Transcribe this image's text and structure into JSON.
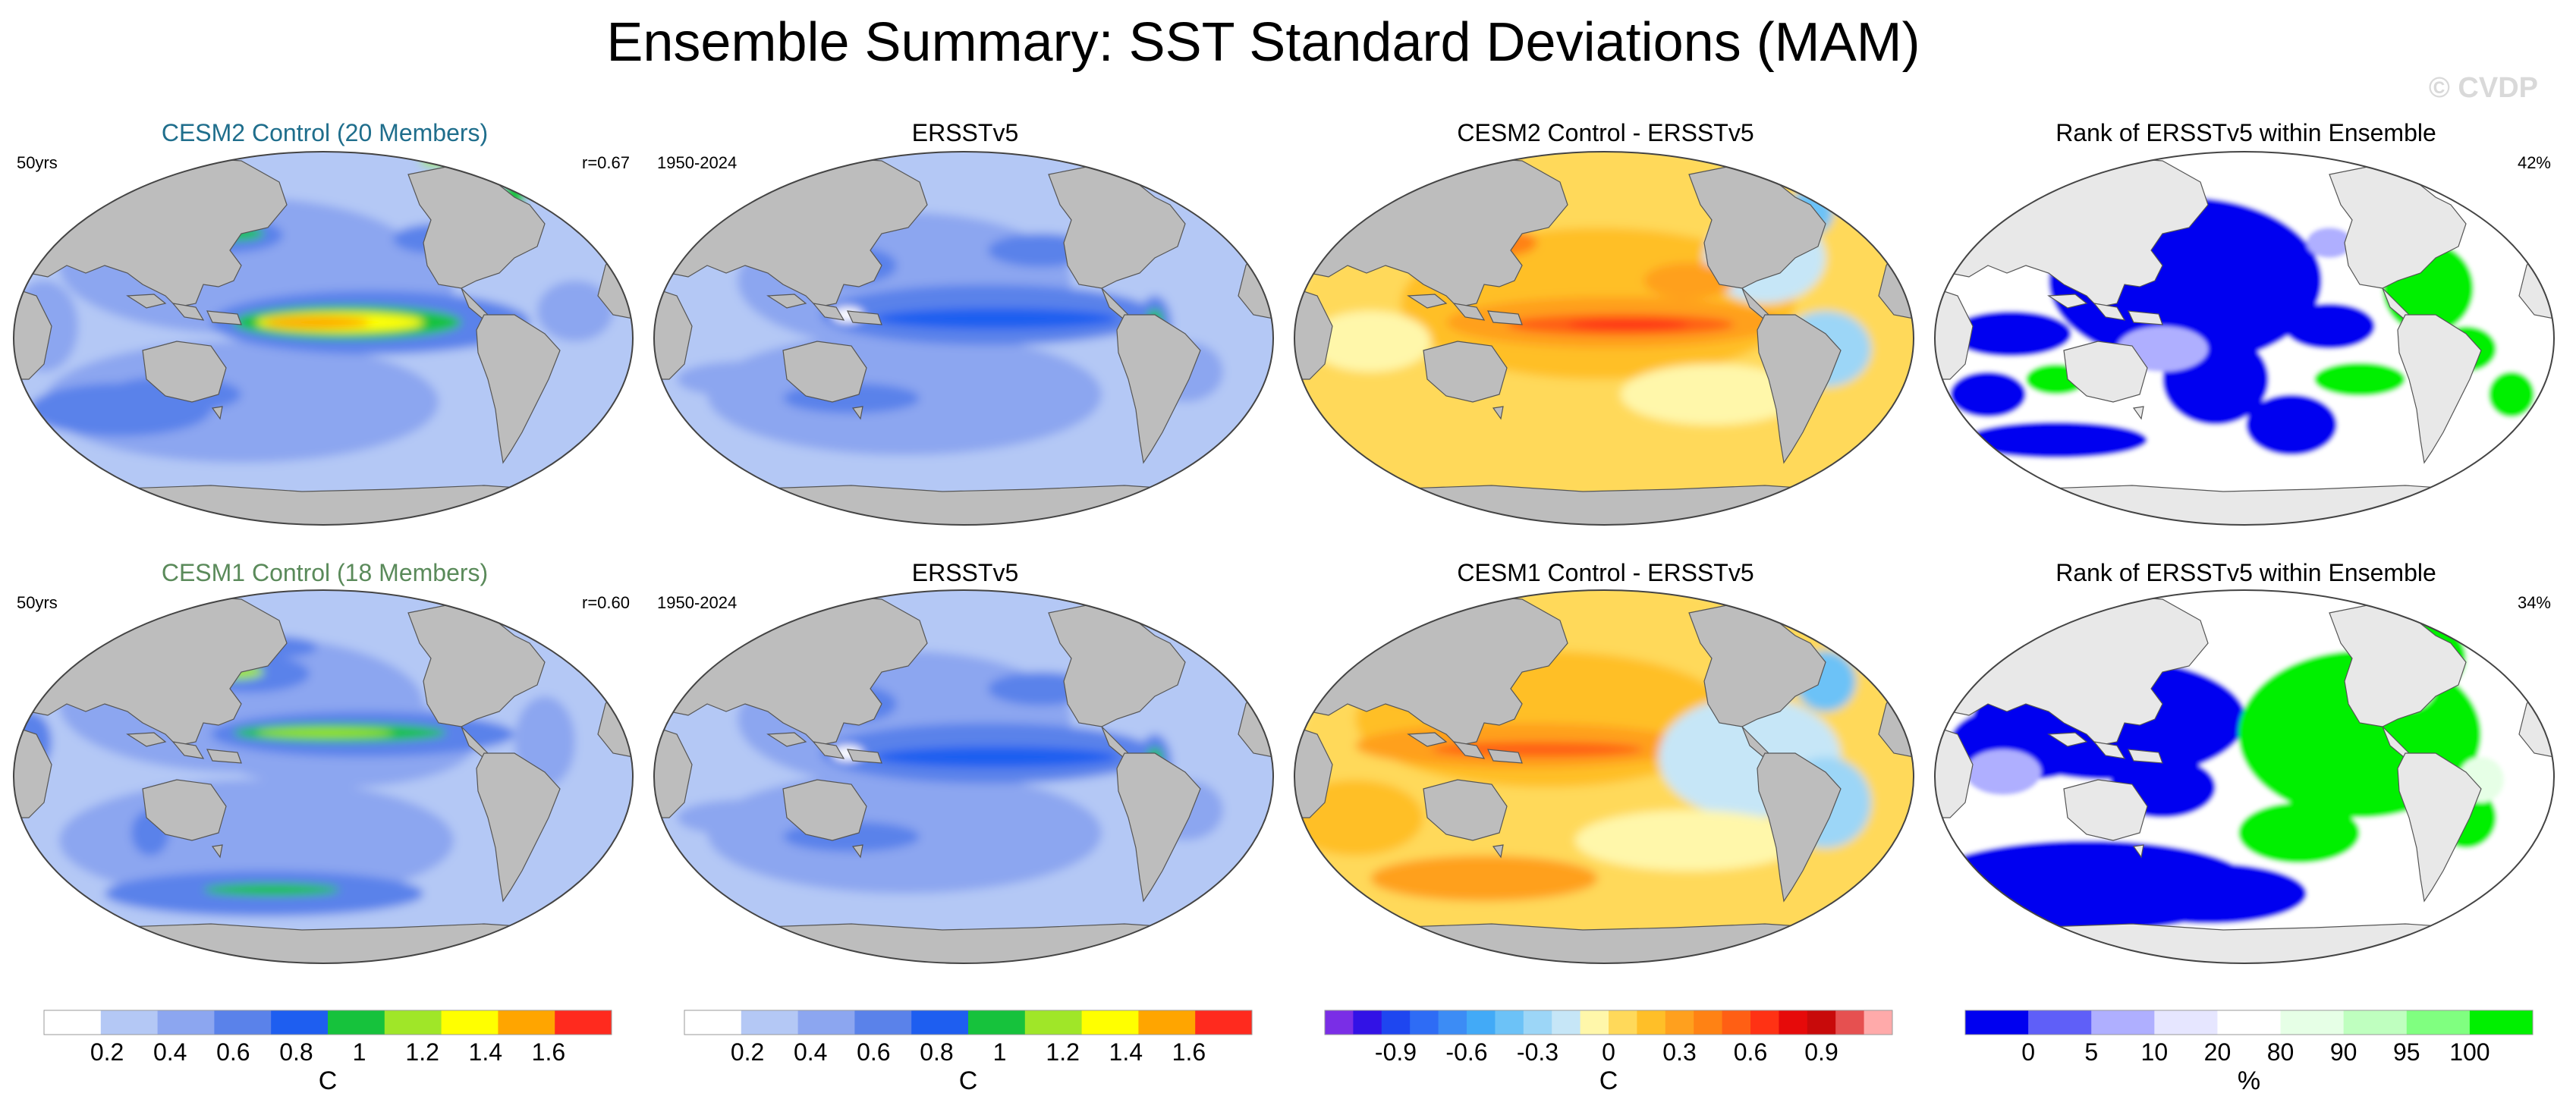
{
  "title": "Ensemble Summary: SST Standard Deviations (MAM)",
  "watermark": "© CVDP",
  "colors": {
    "land": "#bdbdbd",
    "ocean_bg": "#ffffff",
    "title_row1": "#1f6e8c",
    "title_row2": "#5a8a5a"
  },
  "chart_data": [
    {
      "type": "heatmap",
      "id": "r1c1",
      "title": "CESM2 Control (20 Members)",
      "title_color": "#1f6e8c",
      "left_note": "50yrs",
      "right_note": "r=0.67",
      "palette": "std",
      "field": "model1"
    },
    {
      "type": "heatmap",
      "id": "r1c2",
      "title": "ERSSTv5",
      "left_note": "1950-2024",
      "right_note": "",
      "palette": "std",
      "field": "obs"
    },
    {
      "type": "heatmap",
      "id": "r1c3",
      "title": "CESM2 Control - ERSSTv5",
      "left_note": "",
      "right_note": "",
      "palette": "diff",
      "field": "diff1"
    },
    {
      "type": "heatmap",
      "id": "r1c4",
      "title": "Rank of ERSSTv5 within Ensemble",
      "left_note": "",
      "right_note": "42%",
      "palette": "rank",
      "field": "rank1"
    },
    {
      "type": "heatmap",
      "id": "r2c1",
      "title": "CESM1 Control (18 Members)",
      "title_color": "#5a8a5a",
      "left_note": "50yrs",
      "right_note": "r=0.60",
      "palette": "std",
      "field": "model2"
    },
    {
      "type": "heatmap",
      "id": "r2c2",
      "title": "ERSSTv5",
      "left_note": "1950-2024",
      "right_note": "",
      "palette": "std",
      "field": "obs"
    },
    {
      "type": "heatmap",
      "id": "r2c3",
      "title": "CESM1 Control - ERSSTv5",
      "left_note": "",
      "right_note": "",
      "palette": "diff",
      "field": "diff2"
    },
    {
      "type": "heatmap",
      "id": "r2c4",
      "title": "Rank of ERSSTv5 within Ensemble",
      "left_note": "",
      "right_note": "34%",
      "palette": "rank",
      "field": "rank2"
    }
  ],
  "colorbars": [
    {
      "id": "cb1",
      "unit": "C",
      "colors": [
        "#ffffff",
        "#b4c8f5",
        "#8ca6f0",
        "#5a82ea",
        "#1e5ef0",
        "#16c23c",
        "#a0e628",
        "#ffff00",
        "#ffa500",
        "#ff2a1e"
      ],
      "ticks": [
        "0.2",
        "0.4",
        "0.6",
        "0.8",
        "1",
        "1.2",
        "1.4",
        "1.6"
      ]
    },
    {
      "id": "cb2",
      "unit": "C",
      "colors": [
        "#ffffff",
        "#b4c8f5",
        "#8ca6f0",
        "#5a82ea",
        "#1e5ef0",
        "#16c23c",
        "#a0e628",
        "#ffff00",
        "#ffa500",
        "#ff2a1e"
      ],
      "ticks": [
        "0.2",
        "0.4",
        "0.6",
        "0.8",
        "1",
        "1.2",
        "1.4",
        "1.6"
      ]
    },
    {
      "id": "cb3",
      "unit": "C",
      "colors": [
        "#7a2ee6",
        "#3212e6",
        "#1e46f0",
        "#2e6cf5",
        "#3c8cf5",
        "#42aaf7",
        "#6cc2f7",
        "#9cd6f7",
        "#c6e6f7",
        "#fff7aa",
        "#ffd95a",
        "#ffbf28",
        "#ffa01e",
        "#ff8214",
        "#ff5f14",
        "#ff3214",
        "#e60a0a",
        "#c80a0a",
        "#e65050",
        "#ffaaaa"
      ],
      "ticks": [
        "-0.9",
        "-0.6",
        "-0.3",
        "0",
        "0.3",
        "0.6",
        "0.9"
      ]
    },
    {
      "id": "cb4",
      "unit": "%",
      "colors": [
        "#0000f0",
        "#5f5ff8",
        "#afafff",
        "#e6e6ff",
        "#ffffff",
        "#e6ffe6",
        "#bfffbf",
        "#80ff80",
        "#00f000"
      ],
      "ticks": [
        "0",
        "5",
        "10",
        "20",
        "80",
        "90",
        "95",
        "100"
      ]
    }
  ]
}
